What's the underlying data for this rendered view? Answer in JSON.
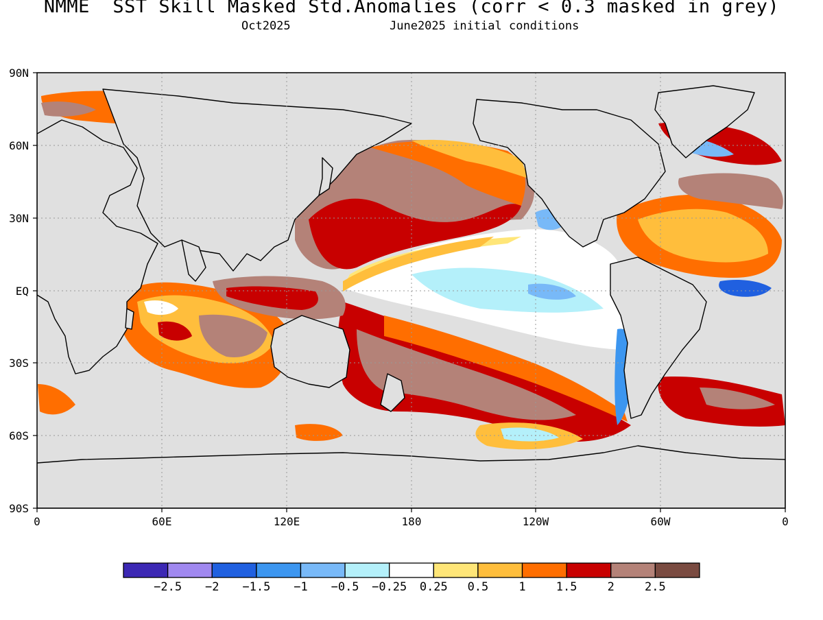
{
  "figure": {
    "title": "NMME  SST Skill Masked Std.Anomalies (corr < 0.3 masked in grey)",
    "subtitle_left": "Oct2025",
    "subtitle_right": "June2025 initial conditions"
  },
  "map": {
    "projection": "equirectangular",
    "land_color": "#e0e0e0",
    "lat_labels": [
      "90N",
      "60N",
      "30N",
      "EQ",
      "30S",
      "60S",
      "90S"
    ],
    "lon_labels": [
      "0",
      "60E",
      "120E",
      "180",
      "120W",
      "60W",
      "0"
    ]
  },
  "colorbar": {
    "colors": [
      "#3c28b4",
      "#a088f0",
      "#2060e0",
      "#3c96f0",
      "#78b9f8",
      "#b4f0fa",
      "#ffffff",
      "#ffe678",
      "#ffbe3c",
      "#ff6e00",
      "#c80000",
      "#b48278",
      "#7a4b41"
    ],
    "labels": [
      "-2.5",
      "-2",
      "-1.5",
      "-1",
      "-0.5",
      "-0.25",
      "0.25",
      "0.5",
      "1",
      "1.5",
      "2",
      "2.5"
    ]
  }
}
